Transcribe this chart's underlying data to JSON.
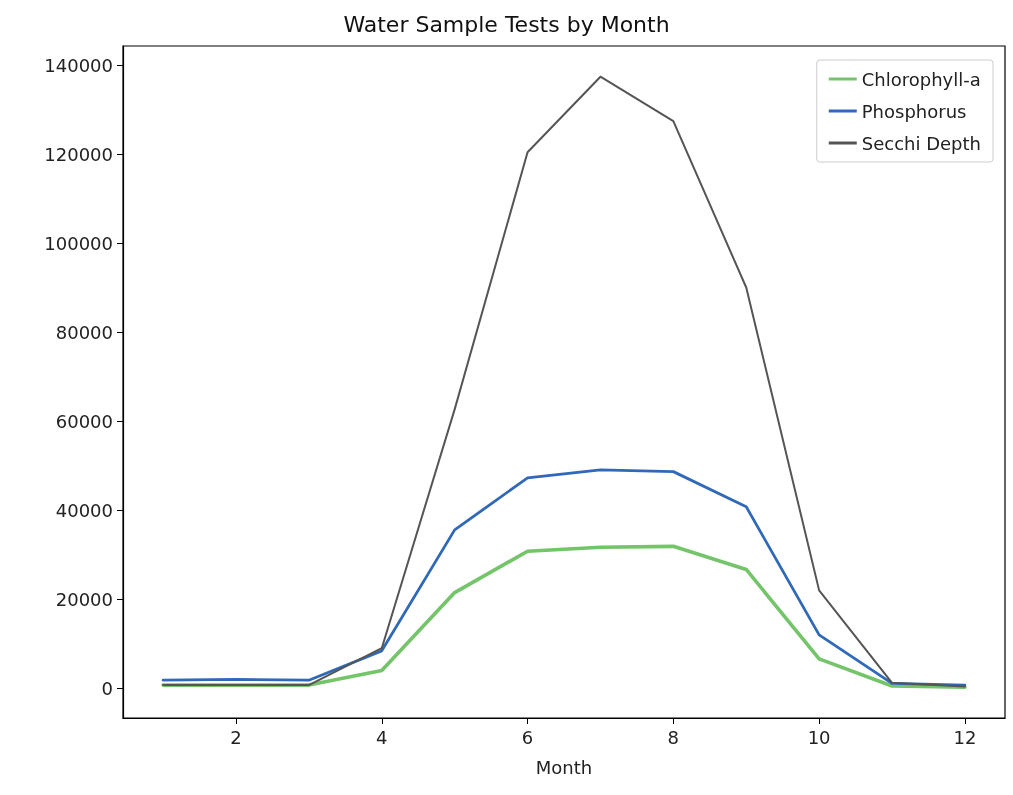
{
  "chart_data": {
    "type": "line",
    "title": "Water Sample Tests by Month",
    "xlabel": "Month",
    "x": [
      1,
      2,
      3,
      4,
      5,
      6,
      7,
      8,
      9,
      10,
      11,
      12
    ],
    "series": [
      {
        "name": "Chlorophyll-a",
        "color": "#74c469",
        "values": [
          700,
          700,
          700,
          4000,
          21500,
          30800,
          31700,
          31900,
          26700,
          6600,
          500,
          200
        ]
      },
      {
        "name": "Phosphorus",
        "color": "#2f69b8",
        "values": [
          1800,
          2000,
          1800,
          8400,
          35600,
          47300,
          49100,
          48700,
          40800,
          12000,
          1100,
          700
        ]
      },
      {
        "name": "Secchi Depth",
        "color": "#555555",
        "values": [
          700,
          700,
          700,
          9000,
          62700,
          120500,
          137500,
          127500,
          90100,
          22000,
          1200,
          400
        ]
      }
    ],
    "xlim": [
      0.45,
      12.55
    ],
    "xticks": [
      2,
      4,
      6,
      8,
      10,
      12
    ],
    "ylim": [
      -6700,
      144400
    ],
    "yticks": [
      0,
      20000,
      40000,
      60000,
      80000,
      100000,
      120000,
      140000
    ],
    "grid": false,
    "legend": "top right",
    "marker": "none",
    "line_style": "solid"
  }
}
